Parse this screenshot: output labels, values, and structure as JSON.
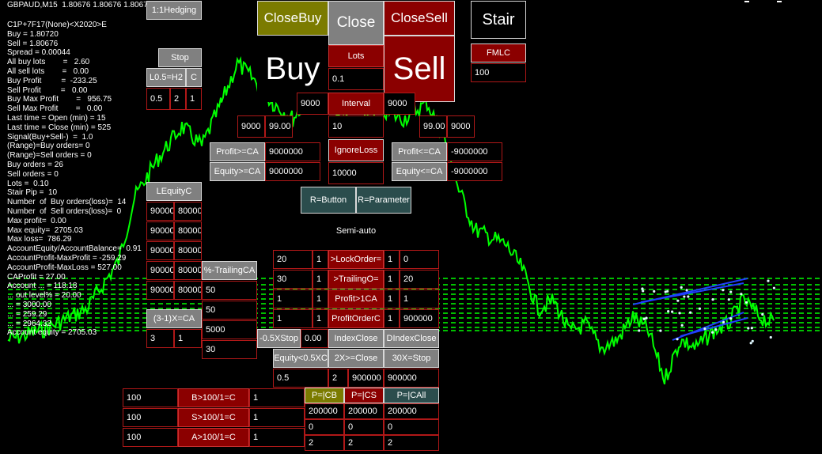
{
  "symbol_header": "GBPAUD,M15  1.80676 1.80676 1.80676",
  "info_lines": [
    "C1P+7F17(None)<X2020>E",
    "Buy = 1.80720",
    "Sell = 1.80676",
    "Spread = 0.00044",
    "All buy lots        =   2.60",
    "All sell lots        =   0.00",
    "Buy Profit         =  -233.25",
    "Sell Profit         =   0.00",
    "Buy Max Profit        =   956.75",
    "Sell Max Profit        =   0.00",
    "Last time = Open (min) = 15",
    "Last time = Close (min) = 525",
    "Signal(Buy+Sell-)  =  1.0",
    "(Range)=Buy orders= 0",
    "(Range)=Sell orders = 0",
    "Buy orders = 26",
    "Sell orders = 0",
    "Lots =  0.10",
    "Stair Pip =  10",
    "Number  of  Buy orders(loss)=  14",
    "Number  of  Sell orders(loss)=  0",
    "Max profit=  0.00",
    "Max equity=  2705.03",
    "Max loss=  786.29",
    "AccountEquity/AccountBalance=  0.91",
    "AccountProfit-MaxProfit = -259.29",
    "AccountProfit-MaxLoss = 527.00",
    "CAProfit = 27.00",
    "Account ... = 118.18",
    "... out level% = 20.00",
    "... = 3000.00",
    "... = 259.29",
    "... = 2964.32",
    "Account equity = 2705.03"
  ],
  "top": {
    "hedging": "1:1Hedging",
    "close_buy": "CloseBuy",
    "close": "Close",
    "close_sell": "CloseSell",
    "stair": "Stair",
    "buy": "Buy",
    "sell": "Sell",
    "fmlc": "FMLC",
    "fmlc_value": "100",
    "lots_label": "Lots",
    "lots_value": "0.1",
    "interval_label": "Interval",
    "interval_left": "9000",
    "interval_right": "9000",
    "interval_value": "10",
    "buy_sl": "9000",
    "buy_tp": "99.00",
    "sell_tp": "99.00",
    "sell_sl": "9000",
    "ignore_loss": "IgnoreLoss",
    "ignore_loss_value": "10000"
  },
  "stop_panel": {
    "stop": "Stop",
    "l05": "L0.5=H2",
    "c": "C",
    "v1": "0.5",
    "v2": "2",
    "v3": "1"
  },
  "ca_panel": {
    "profit_ge": "Profit>=CA",
    "profit_ge_value": "9000000",
    "equity_ge": "Equity>=CA",
    "equity_ge_value": "9000000",
    "profit_le": "Profit<=CA",
    "profit_le_value": "-9000000",
    "equity_le": "Equity<=CA",
    "equity_le_value": "-9000000"
  },
  "lequity": {
    "label": "LEquityC",
    "rows": [
      [
        "90000",
        "80000"
      ],
      [
        "90000",
        "80000"
      ],
      [
        "90000",
        "80000"
      ],
      [
        "90000",
        "80000"
      ],
      [
        "90000",
        "80000"
      ]
    ]
  },
  "trailing": {
    "label": "%-TrailingCA",
    "values": [
      "50",
      "50",
      "5000",
      "30"
    ]
  },
  "ca31": {
    "label": "(3-1)X=CA",
    "v1": "3",
    "v2": "1"
  },
  "mode": {
    "r_button": "R=Button",
    "r_parameter": "R=Parameter",
    "semi_auto": "Semi-auto"
  },
  "orders_grid": {
    "rows": [
      {
        "a": "20",
        "b": "1",
        "label": ">LockOrder=",
        "c": "1",
        "d": "0"
      },
      {
        "a": "30",
        "b": "1",
        "label": ">TrailingO=",
        "c": "1",
        "d": "20"
      },
      {
        "a": "1",
        "b": "1",
        "label": "Profit>1CA",
        "c": "1",
        "d": "1"
      },
      {
        "a": "1",
        "b": "1",
        "label": "ProfitOrderC",
        "c": "1",
        "d": "900000"
      }
    ]
  },
  "stop_row": {
    "stop05": "-0.5XStop",
    "stop05_value": "0.00",
    "index_close": "IndexClose",
    "dindex_close": "DIndexClose"
  },
  "close_row": {
    "equity05": "Equity<0.5XC",
    "x2close": "2X>=Close",
    "x30stop": "30X=Stop",
    "v1": "0.5",
    "v2": "2",
    "v3": "900000",
    "v4": "900000"
  },
  "bottom_left": {
    "rows": [
      {
        "left": "100",
        "label": "B>100/1=C",
        "right": "1"
      },
      {
        "left": "100",
        "label": "S>100/1=C",
        "right": "1"
      },
      {
        "left": "100",
        "label": "A>100/1=C",
        "right": "1"
      }
    ]
  },
  "pclose": {
    "cb": "P=|CB",
    "cs": "P=|CS",
    "call": "P=|CAll",
    "rows": [
      [
        "200000",
        "200000",
        "200000"
      ],
      [
        "0",
        "0",
        "0"
      ],
      [
        "2",
        "2",
        "2"
      ]
    ]
  },
  "colors": {
    "candles": "#00ff00",
    "panel_border": "#b01818",
    "button_gray": "#808080",
    "button_red": "#8b0000",
    "button_olive": "#7b7b00",
    "button_teal": "#2b4d4d",
    "order_line": "#1f3fff"
  }
}
